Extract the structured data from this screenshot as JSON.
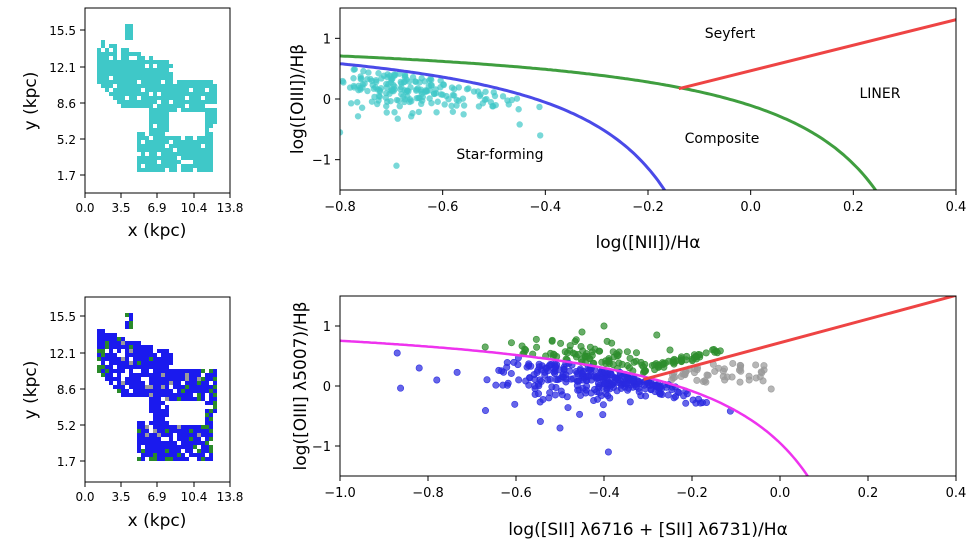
{
  "chart_data": [
    {
      "id": "map_top",
      "type": "heatmap",
      "xlabel": "x (kpc)",
      "ylabel": "y (kpc)",
      "xticks": [
        "0.0",
        "3.5",
        "6.9",
        "10.4",
        "13.8"
      ],
      "yticks": [
        "15.5",
        "12.1",
        "8.6",
        "5.2",
        "1.7"
      ],
      "xlim": [
        0,
        13.8
      ],
      "ylim": [
        0,
        17.2
      ],
      "colors": {
        "star_forming": "#3fc8c8"
      }
    },
    {
      "id": "bpt_nii",
      "type": "scatter",
      "xlabel": "log([NII])/Hα",
      "ylabel": "log([OIII])/Hβ",
      "xlim": [
        -0.8,
        0.4
      ],
      "ylim": [
        -1.5,
        1.5
      ],
      "xticks": [
        "−0.8",
        "−0.6",
        "−0.4",
        "−0.2",
        "0.0",
        "0.2",
        "0.4"
      ],
      "yticks": [
        "1",
        "0",
        "−1"
      ],
      "regions": [
        "Seyfert",
        "LINER",
        "Composite",
        "Star-forming"
      ],
      "colors": {
        "points": "#3fc8c8",
        "kauffmann": "#4a4ae8",
        "kewley": "#3f9e3f",
        "seyfert_liner": "#ee4444"
      }
    },
    {
      "id": "map_bottom",
      "type": "heatmap",
      "xlabel": "x (kpc)",
      "ylabel": "y (kpc)",
      "xticks": [
        "0.0",
        "3.5",
        "6.9",
        "10.4",
        "13.8"
      ],
      "yticks": [
        "15.5",
        "12.1",
        "8.6",
        "5.2",
        "1.7"
      ],
      "xlim": [
        0,
        13.8
      ],
      "ylim": [
        0,
        17.2
      ],
      "colors": {
        "star_forming": "#1a1aee",
        "composite": "#2a8a2a",
        "liner": "#9a9a9a"
      }
    },
    {
      "id": "bpt_sii",
      "type": "scatter",
      "xlabel": "log([SII] λ6716 + [SII] λ6731)/Hα",
      "ylabel": "log([OIII] λ5007)/Hβ",
      "xlim": [
        -1.0,
        0.4
      ],
      "ylim": [
        -1.5,
        1.5
      ],
      "xticks": [
        "−1.0",
        "−0.8",
        "−0.6",
        "−0.4",
        "−0.2",
        "0.0",
        "0.2",
        "0.4"
      ],
      "yticks": [
        "1",
        "0",
        "−1"
      ],
      "colors": {
        "star_forming": "#2a2ae0",
        "seyfert": "#2e8e2e",
        "liner": "#9a9a9a",
        "kewley": "#ee33ee",
        "seyfert_liner": "#ee4444"
      }
    }
  ]
}
